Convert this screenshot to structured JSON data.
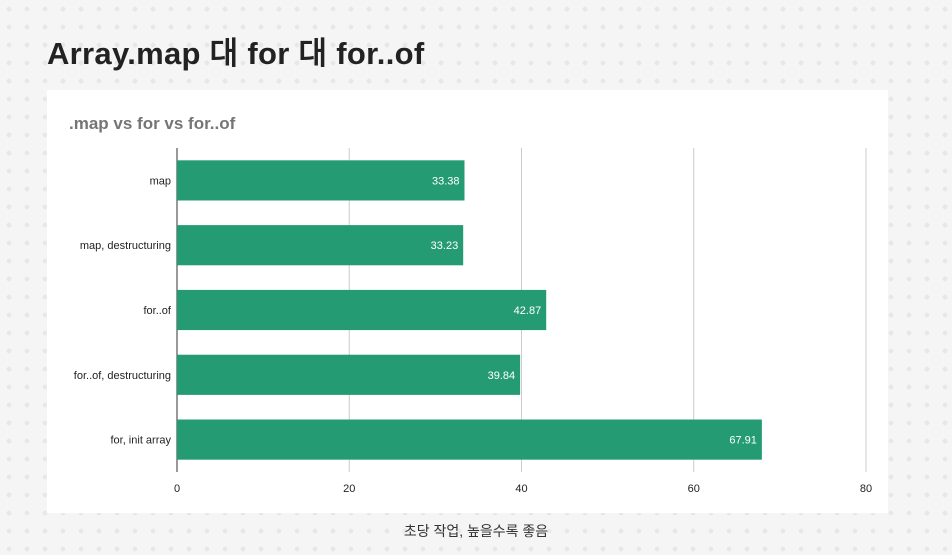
{
  "page": {
    "title": "Array.map 대 for 대 for..of",
    "caption": "초당 작업, 높을수록 좋음"
  },
  "colors": {
    "bar": "#259b74",
    "grid": "#cccccc",
    "axis": "#333333",
    "background": "#f5f5f5"
  },
  "chart_data": {
    "type": "bar",
    "orientation": "horizontal",
    "title": ".map vs for vs for..of",
    "xlabel": "",
    "ylabel": "",
    "categories": [
      "map",
      "map, destructuring",
      "for..of",
      "for..of, destructuring",
      "for, init array"
    ],
    "values": [
      33.38,
      33.23,
      42.87,
      39.84,
      67.91
    ],
    "data_labels": [
      "33.38",
      "33.23",
      "42.87",
      "39.84",
      "67.91"
    ],
    "xlim": [
      0,
      80
    ],
    "xticks": [
      0,
      20,
      40,
      60,
      80
    ],
    "grid": true,
    "legend": "none"
  }
}
